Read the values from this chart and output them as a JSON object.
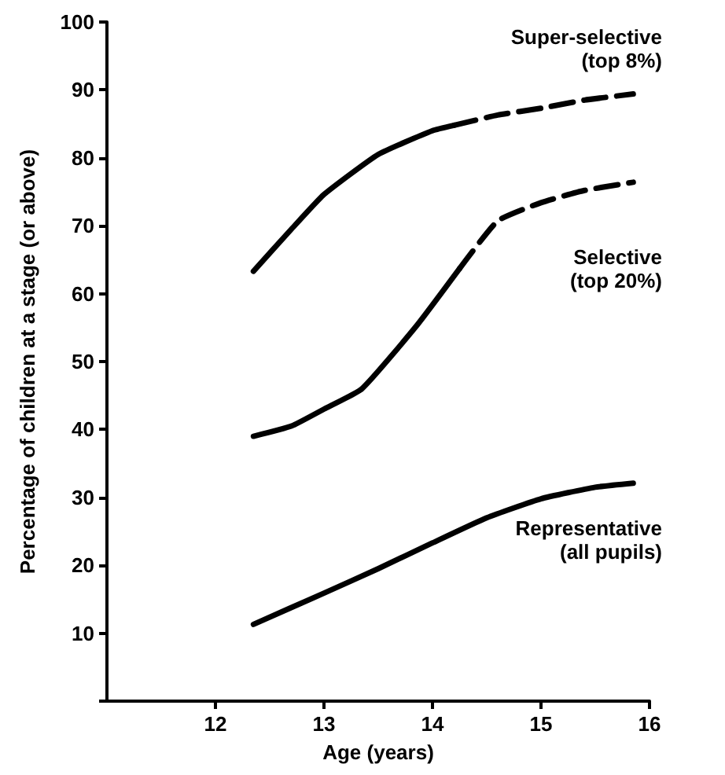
{
  "chart_data": {
    "type": "line",
    "xlabel": "Age (years)",
    "ylabel": "Percentage of children at a stage (or above)",
    "xlim": [
      11,
      16
    ],
    "xticks": [
      12,
      13,
      14,
      15,
      16
    ],
    "ylim": [
      0,
      100
    ],
    "yticks": [
      {
        "value": 0,
        "label": null
      },
      10,
      20,
      30,
      40,
      50,
      60,
      70,
      80,
      90,
      100
    ],
    "grid": false,
    "legend": false,
    "marker": "none",
    "series": [
      {
        "color": "#000000",
        "line_style": "solid",
        "x": [
          12.35,
          12.7,
          13,
          13.5,
          14,
          14.2
        ],
        "values": [
          63.3,
          69.5,
          74.6,
          80.5,
          84,
          84.8
        ]
      },
      {
        "name": "Super-selective\n(top 8%)",
        "color": "#000000",
        "line_style": "dashed",
        "x": [
          14.2,
          14.6,
          15,
          15.4,
          15.85
        ],
        "values": [
          84.8,
          86.3,
          87.3,
          88.5,
          89.4
        ]
      },
      {
        "color": "#000000",
        "line_style": "solid",
        "x": [
          12.35,
          12.7,
          13,
          13.35,
          13.85,
          14.25
        ],
        "values": [
          39,
          40.5,
          43,
          46,
          55.2,
          63.7
        ]
      },
      {
        "name": "Selective\n(top 20%)",
        "color": "#000000",
        "line_style": "dashed",
        "x": [
          14.25,
          14.6,
          15,
          15.4,
          15.85
        ],
        "values": [
          63.7,
          70.7,
          73.4,
          75.2,
          76.4
        ]
      },
      {
        "name": "Representative\n(all pupils)",
        "color": "#000000",
        "line_style": "solid",
        "x": [
          12.35,
          13,
          13.5,
          14,
          14.5,
          15,
          15.5,
          15.85
        ],
        "values": [
          11.3,
          15.9,
          19.5,
          23.3,
          27,
          29.8,
          31.5,
          32.1
        ]
      }
    ]
  }
}
